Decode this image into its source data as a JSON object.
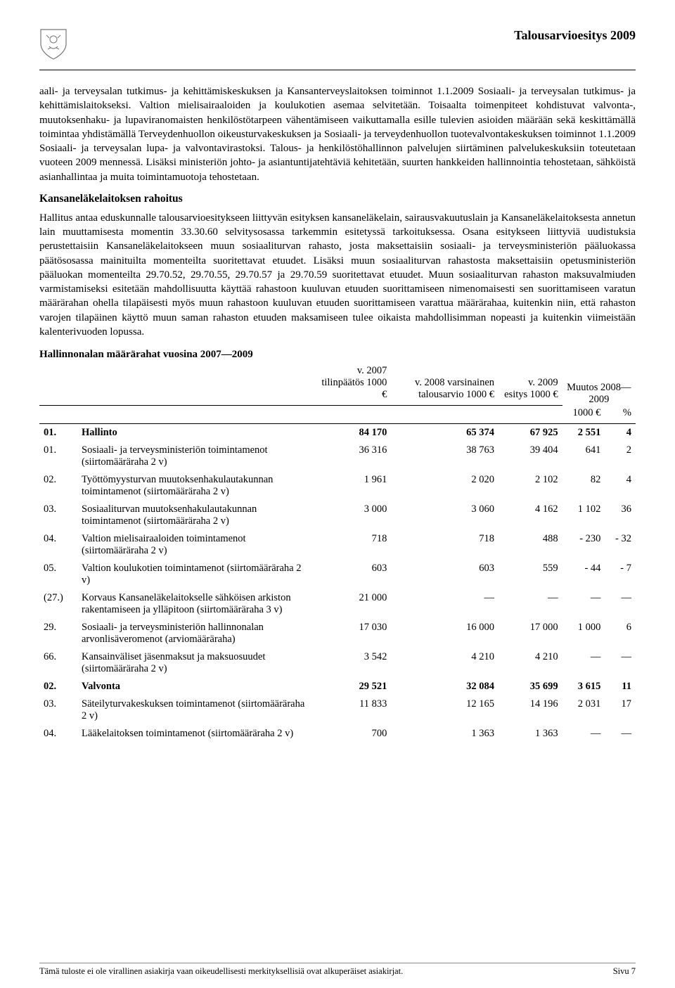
{
  "header": {
    "title": "Talousarvioesitys 2009"
  },
  "paragraphs": {
    "p1": "aali- ja terveysalan tutkimus- ja kehittämiskeskuksen ja Kansanterveyslaitoksen toiminnot 1.1.2009 Sosiaali- ja terveysalan tutkimus- ja kehittämislaitokseksi. Valtion mielisairaaloiden ja koulukotien asemaa selvitetään. Toisaalta toimenpiteet kohdistuvat valvonta-, muutoksenhaku- ja lupaviranomaisten henkilöstötarpeen vähentämiseen vaikuttamalla esille tulevien asioiden määrään sekä keskittämällä toimintaa yhdistämällä Terveydenhuollon oikeusturvakeskuksen ja Sosiaali- ja terveydenhuollon tuotevalvontakeskuksen toiminnot 1.1.2009 Sosiaali- ja terveysalan lupa- ja valvontavirastoksi. Talous- ja henkilöstöhallinnon palvelujen siirtäminen palvelukeskuksiin toteutetaan vuoteen 2009 mennessä. Lisäksi ministeriön johto- ja asiantuntijatehtäviä kehitetään, suurten hankkeiden hallinnointia tehostetaan, sähköistä asianhallintaa ja muita toimintamuotoja tehostetaan.",
    "h2": "Kansaneläkelaitoksen rahoitus",
    "p2": "Hallitus antaa eduskunnalle talousarvioesitykseen liittyvän esityksen kansaneläkelain, sairausvakuutuslain ja Kansaneläkelaitoksesta annetun lain muuttamisesta momentin 33.30.60 selvitysosassa tarkemmin esitetyssä tarkoituksessa. Osana esitykseen liittyviä uudistuksia perustettaisiin Kansaneläkelaitokseen muun sosiaaliturvan rahasto, josta maksettaisiin sosiaali- ja terveysministeriön pääluokassa päätösosassa mainituilta momenteilta suoritettavat etuudet. Lisäksi muun sosiaaliturvan rahastosta maksettaisiin opetusministeriön pääluokan momenteilta 29.70.52, 29.70.55, 29.70.57 ja 29.70.59 suoritettavat etuudet. Muun sosiaaliturvan rahaston maksuvalmiuden varmistamiseksi esitetään mahdollisuutta käyttää rahastoon kuuluvan etuuden suorittamiseen nimenomaisesti sen suorittamiseen varatun määrärahan ohella tilapäisesti myös muun rahastoon kuuluvan etuuden suorittamiseen varattua määrärahaa, kuitenkin niin, että rahaston varojen tilapäinen käyttö muun saman rahaston etuuden maksamiseen tulee oikaista mahdollisimman nopeasti ja kuitenkin viimeistään kalenterivuoden lopussa."
  },
  "table": {
    "title": "Hallinnonalan määrärahat vuosina 2007—2009",
    "header": {
      "col1": "v. 2007 tilinpäätös 1000 €",
      "col2": "v. 2008 varsinainen talousarvio 1000 €",
      "col3": "v. 2009 esitys 1000 €",
      "col4_top": "Muutos 2008—2009",
      "col4": "1000 €",
      "col5": "%"
    },
    "rows": [
      {
        "bold": true,
        "code": "01.",
        "label": "Hallinto",
        "c1": "84 170",
        "c2": "65 374",
        "c3": "67 925",
        "c4": "2 551",
        "c5": "4"
      },
      {
        "bold": false,
        "code": "01.",
        "label": "Sosiaali- ja terveysministeriön toimintamenot (siirtomääräraha 2 v)",
        "c1": "36 316",
        "c2": "38 763",
        "c3": "39 404",
        "c4": "641",
        "c5": "2"
      },
      {
        "bold": false,
        "code": "02.",
        "label": "Työttömyysturvan muutoksenhakulautakunnan toimintamenot (siirtomääräraha 2 v)",
        "c1": "1 961",
        "c2": "2 020",
        "c3": "2 102",
        "c4": "82",
        "c5": "4"
      },
      {
        "bold": false,
        "code": "03.",
        "label": "Sosiaaliturvan muutoksenhakulautakunnan toimintamenot (siirtomääräraha 2 v)",
        "c1": "3 000",
        "c2": "3 060",
        "c3": "4 162",
        "c4": "1 102",
        "c5": "36"
      },
      {
        "bold": false,
        "code": "04.",
        "label": "Valtion mielisairaaloiden toimintamenot (siirtomääräraha 2 v)",
        "c1": "718",
        "c2": "718",
        "c3": "488",
        "c4": "- 230",
        "c5": "- 32"
      },
      {
        "bold": false,
        "code": "05.",
        "label": "Valtion koulukotien toimintamenot (siirtomääräraha 2 v)",
        "c1": "603",
        "c2": "603",
        "c3": "559",
        "c4": "- 44",
        "c5": "- 7"
      },
      {
        "bold": false,
        "code": "(27.)",
        "label": "Korvaus Kansaneläkelaitokselle sähköisen arkiston rakentamiseen ja ylläpitoon (siirtomääräraha 3 v)",
        "c1": "21 000",
        "c2": "—",
        "c3": "—",
        "c4": "—",
        "c5": "—"
      },
      {
        "bold": false,
        "code": "29.",
        "label": "Sosiaali- ja terveysministeriön hallinnonalan arvonlisäveromenot (arviomääräraha)",
        "c1": "17 030",
        "c2": "16 000",
        "c3": "17 000",
        "c4": "1 000",
        "c5": "6"
      },
      {
        "bold": false,
        "code": "66.",
        "label": "Kansainväliset jäsenmaksut ja maksuosuudet (siirtomääräraha 2 v)",
        "c1": "3 542",
        "c2": "4 210",
        "c3": "4 210",
        "c4": "—",
        "c5": "—"
      },
      {
        "bold": true,
        "code": "02.",
        "label": "Valvonta",
        "c1": "29 521",
        "c2": "32 084",
        "c3": "35 699",
        "c4": "3 615",
        "c5": "11"
      },
      {
        "bold": false,
        "code": "03.",
        "label": "Säteilyturvakeskuksen toimintamenot (siirtomääräraha 2 v)",
        "c1": "11 833",
        "c2": "12 165",
        "c3": "14 196",
        "c4": "2 031",
        "c5": "17"
      },
      {
        "bold": false,
        "code": "04.",
        "label": "Lääkelaitoksen toimintamenot (siirtomääräraha 2 v)",
        "c1": "700",
        "c2": "1 363",
        "c3": "1 363",
        "c4": "—",
        "c5": "—"
      }
    ]
  },
  "footer": {
    "left": "Tämä tuloste ei ole virallinen asiakirja vaan oikeudellisesti merkityksellisiä ovat alkuperäiset asiakirjat.",
    "right": "Sivu 7"
  }
}
